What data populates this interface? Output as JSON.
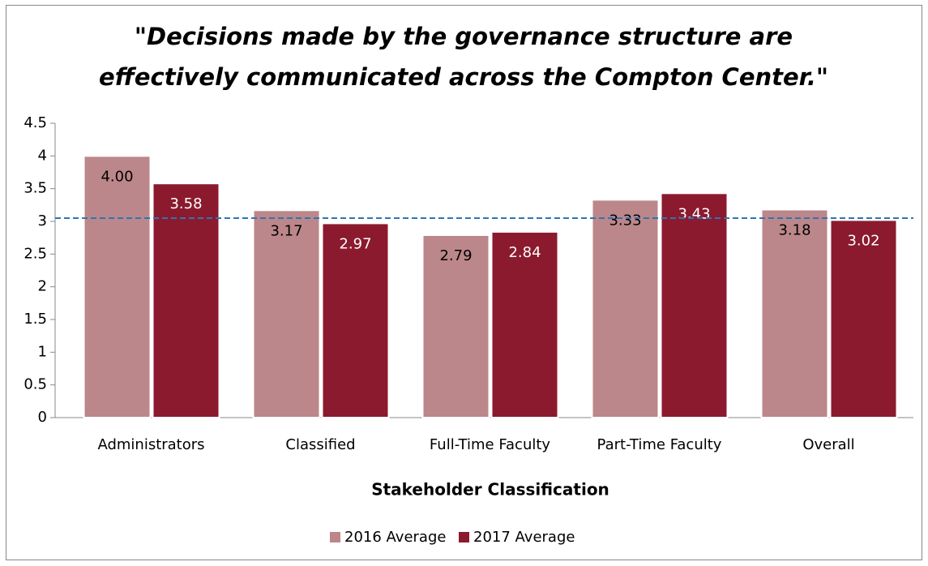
{
  "chart_data": {
    "type": "bar",
    "title": [
      "\"Decisions made by the governance structure are",
      "effectively communicated across the Compton Center.\""
    ],
    "x_label": "Stakeholder Classification",
    "categories": [
      "Administrators",
      "Classified",
      "Full-Time Faculty",
      "Part-Time Faculty",
      "Overall"
    ],
    "series": [
      {
        "name": "2016 Average",
        "color": "#bc878a",
        "values": [
          4.0,
          3.17,
          2.79,
          3.33,
          3.18
        ],
        "value_labels": [
          "4.00",
          "3.17",
          "2.79",
          "3.33",
          "3.18"
        ],
        "label_color": "#000000"
      },
      {
        "name": "2017 Average",
        "color": "#8b1a2e",
        "values": [
          3.58,
          2.97,
          2.84,
          3.43,
          3.02
        ],
        "value_labels": [
          "3.58",
          "2.97",
          "2.84",
          "3.43",
          "3.02"
        ],
        "label_color": "#ffffff"
      }
    ],
    "reference_line": {
      "value": 3.05,
      "color": "#2e75b6"
    },
    "ylim": [
      0,
      4.5
    ],
    "yticks": [
      0,
      0.5,
      1,
      1.5,
      2,
      2.5,
      3,
      3.5,
      4,
      4.5
    ],
    "grid": false,
    "legend": "bottom"
  }
}
